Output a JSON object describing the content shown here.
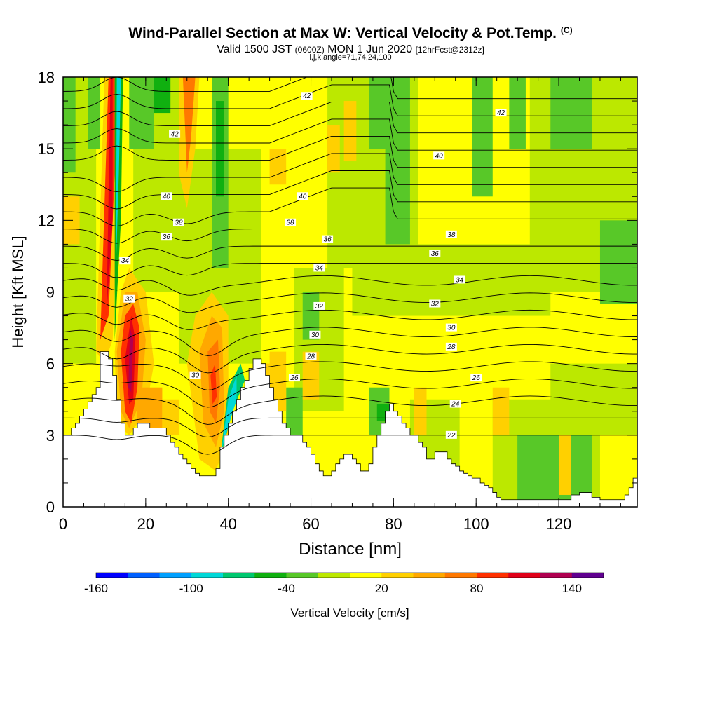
{
  "title": {
    "main": "Wind-Parallel Section at Max W: Vertical Velocity & Pot.Temp.",
    "copyright": "(C)",
    "valid_a": "Valid 1500 JST",
    "valid_z": "(0600Z)",
    "valid_b": "MON 1 Jun 2020",
    "fcst": "[12hrFcst@2312z]",
    "indices": "i,j,k,angle=71,74,24,100"
  },
  "chart_data": {
    "type": "contour",
    "xlabel": "Distance [nm]",
    "ylabel": "Height [Kft MSL]",
    "xlim": [
      0,
      139
    ],
    "ylim": [
      0,
      18
    ],
    "x_ticks": [
      0,
      20,
      40,
      60,
      80,
      100,
      120
    ],
    "y_ticks": [
      0,
      3,
      6,
      9,
      12,
      15,
      18
    ],
    "colorbar": {
      "label": "Vertical Velocity [cm/s]",
      "tick_labels": [
        -160,
        -100,
        -40,
        20,
        80,
        140
      ],
      "colors": [
        "#0000ff",
        "#0060ff",
        "#00a0ff",
        "#00d8d8",
        "#00c870",
        "#10b010",
        "#58c828",
        "#bce800",
        "#ffff00",
        "#ffd000",
        "#ffa800",
        "#ff7800",
        "#ff3000",
        "#e00018",
        "#b00050",
        "#600090"
      ]
    },
    "terrain": [
      [
        0,
        3.0
      ],
      [
        1,
        3.0
      ],
      [
        2,
        3.3
      ],
      [
        3,
        3.5
      ],
      [
        4,
        3.8
      ],
      [
        5,
        4.1
      ],
      [
        6,
        4.4
      ],
      [
        7,
        4.7
      ],
      [
        8,
        5.0
      ],
      [
        9,
        6.5
      ],
      [
        10,
        6.5
      ],
      [
        11,
        6.2
      ],
      [
        12,
        5.5
      ],
      [
        13,
        4.5
      ],
      [
        14,
        3.5
      ],
      [
        15,
        3.0
      ],
      [
        16,
        3.0
      ],
      [
        17,
        3.3
      ],
      [
        18,
        3.5
      ],
      [
        19,
        3.5
      ],
      [
        20,
        3.5
      ],
      [
        21,
        3.3
      ],
      [
        22,
        3.3
      ],
      [
        23,
        3.3
      ],
      [
        24,
        3.3
      ],
      [
        25,
        3.0
      ],
      [
        26,
        2.7
      ],
      [
        27,
        2.5
      ],
      [
        28,
        2.2
      ],
      [
        29,
        2.0
      ],
      [
        30,
        1.8
      ],
      [
        31,
        1.6
      ],
      [
        32,
        1.4
      ],
      [
        33,
        1.3
      ],
      [
        34,
        1.3
      ],
      [
        35,
        1.3
      ],
      [
        36,
        1.3
      ],
      [
        37,
        1.6
      ],
      [
        38,
        2.5
      ],
      [
        39,
        3.0
      ],
      [
        40,
        3.5
      ],
      [
        41,
        4.0
      ],
      [
        42,
        4.5
      ],
      [
        43,
        5.0
      ],
      [
        44,
        5.3
      ],
      [
        45,
        5.8
      ],
      [
        46,
        6.2
      ],
      [
        47,
        6.2
      ],
      [
        48,
        6.0
      ],
      [
        49,
        5.5
      ],
      [
        50,
        5.0
      ],
      [
        51,
        4.5
      ],
      [
        52,
        4.0
      ],
      [
        53,
        3.5
      ],
      [
        54,
        3.3
      ],
      [
        55,
        3.0
      ],
      [
        56,
        3.0
      ],
      [
        57,
        3.0
      ],
      [
        58,
        2.7
      ],
      [
        59,
        2.5
      ],
      [
        60,
        2.2
      ],
      [
        61,
        1.8
      ],
      [
        62,
        1.5
      ],
      [
        63,
        1.3
      ],
      [
        64,
        1.3
      ],
      [
        65,
        1.5
      ],
      [
        66,
        1.8
      ],
      [
        67,
        2.0
      ],
      [
        68,
        2.2
      ],
      [
        69,
        2.2
      ],
      [
        70,
        2.0
      ],
      [
        71,
        1.8
      ],
      [
        72,
        1.5
      ],
      [
        73,
        1.5
      ],
      [
        74,
        1.8
      ],
      [
        75,
        2.5
      ],
      [
        76,
        3.0
      ],
      [
        77,
        3.5
      ],
      [
        78,
        4.0
      ],
      [
        79,
        4.3
      ],
      [
        80,
        4.0
      ],
      [
        81,
        3.8
      ],
      [
        82,
        3.5
      ],
      [
        83,
        3.3
      ],
      [
        84,
        3.0
      ],
      [
        85,
        3.0
      ],
      [
        86,
        2.7
      ],
      [
        87,
        2.5
      ],
      [
        88,
        2.0
      ],
      [
        89,
        2.0
      ],
      [
        90,
        2.3
      ],
      [
        91,
        2.3
      ],
      [
        92,
        2.3
      ],
      [
        93,
        2.0
      ],
      [
        94,
        1.8
      ],
      [
        95,
        1.7
      ],
      [
        96,
        1.5
      ],
      [
        97,
        1.4
      ],
      [
        98,
        1.3
      ],
      [
        99,
        1.2
      ],
      [
        100,
        1.2
      ],
      [
        101,
        1.0
      ],
      [
        102,
        0.9
      ],
      [
        103,
        0.8
      ],
      [
        104,
        0.6
      ],
      [
        105,
        0.4
      ],
      [
        106,
        0.3
      ],
      [
        108,
        0.3
      ],
      [
        110,
        0.3
      ],
      [
        112,
        0.3
      ],
      [
        114,
        0.3
      ],
      [
        116,
        0.3
      ],
      [
        118,
        0.3
      ],
      [
        120,
        0.3
      ],
      [
        122,
        0.3
      ],
      [
        123,
        0.5
      ],
      [
        125,
        0.6
      ],
      [
        127,
        0.6
      ],
      [
        128,
        0.4
      ],
      [
        130,
        0.3
      ],
      [
        133,
        0.3
      ],
      [
        135,
        0.3
      ],
      [
        136,
        0.5
      ],
      [
        137,
        0.8
      ],
      [
        138,
        1.2
      ],
      [
        139,
        1.5
      ]
    ],
    "isentrope_labels": [
      {
        "text": "42",
        "x": 27,
        "y": 15.6
      },
      {
        "text": "42",
        "x": 59,
        "y": 17.2
      },
      {
        "text": "42",
        "x": 106,
        "y": 16.5
      },
      {
        "text": "40",
        "x": 25,
        "y": 13.0
      },
      {
        "text": "40",
        "x": 58,
        "y": 13.0
      },
      {
        "text": "40",
        "x": 91,
        "y": 14.7
      },
      {
        "text": "38",
        "x": 28,
        "y": 11.9
      },
      {
        "text": "38",
        "x": 55,
        "y": 11.9
      },
      {
        "text": "38",
        "x": 94,
        "y": 11.4
      },
      {
        "text": "36",
        "x": 25,
        "y": 11.3
      },
      {
        "text": "36",
        "x": 64,
        "y": 11.2
      },
      {
        "text": "36",
        "x": 90,
        "y": 10.6
      },
      {
        "text": "34",
        "x": 15,
        "y": 10.3
      },
      {
        "text": "34",
        "x": 62,
        "y": 10.0
      },
      {
        "text": "34",
        "x": 96,
        "y": 9.5
      },
      {
        "text": "32",
        "x": 16,
        "y": 8.7
      },
      {
        "text": "32",
        "x": 62,
        "y": 8.4
      },
      {
        "text": "32",
        "x": 90,
        "y": 8.5
      },
      {
        "text": "30",
        "x": 32,
        "y": 5.5
      },
      {
        "text": "30",
        "x": 61,
        "y": 7.2
      },
      {
        "text": "30",
        "x": 94,
        "y": 7.5
      },
      {
        "text": "28",
        "x": 60,
        "y": 6.3
      },
      {
        "text": "28",
        "x": 94,
        "y": 6.7
      },
      {
        "text": "26",
        "x": 56,
        "y": 5.4
      },
      {
        "text": "26",
        "x": 100,
        "y": 5.4
      },
      {
        "text": "24",
        "x": 95,
        "y": 4.3
      },
      {
        "text": "22",
        "x": 94,
        "y": 3.0
      }
    ]
  }
}
